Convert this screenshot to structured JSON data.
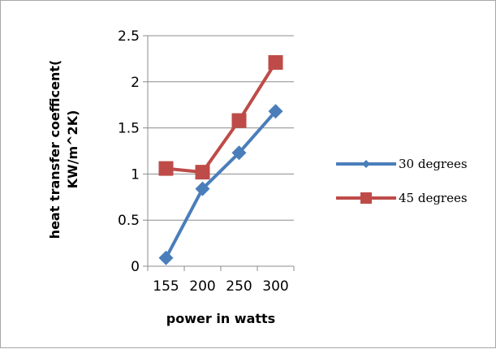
{
  "chart_data": {
    "type": "line",
    "categories": [
      "155",
      "200",
      "250",
      "300"
    ],
    "series": [
      {
        "name": "30 degrees",
        "values": [
          0.09,
          0.84,
          1.23,
          1.68
        ],
        "color": "#4a7ebb",
        "marker": "diamond"
      },
      {
        "name": "45 degrees",
        "values": [
          1.06,
          1.02,
          1.58,
          2.21
        ],
        "color": "#be4b48",
        "marker": "square"
      }
    ],
    "title": "",
    "xlabel": "power in watts",
    "ylabel_lines": [
      "heat transfer coefficent(",
      "KW/m^2K)"
    ],
    "ylim": [
      0,
      2.5
    ],
    "yticks": [
      "0",
      "0.5",
      "1",
      "1.5",
      "2",
      "2.5"
    ],
    "grid": "horizontal",
    "legend_position": "right"
  }
}
